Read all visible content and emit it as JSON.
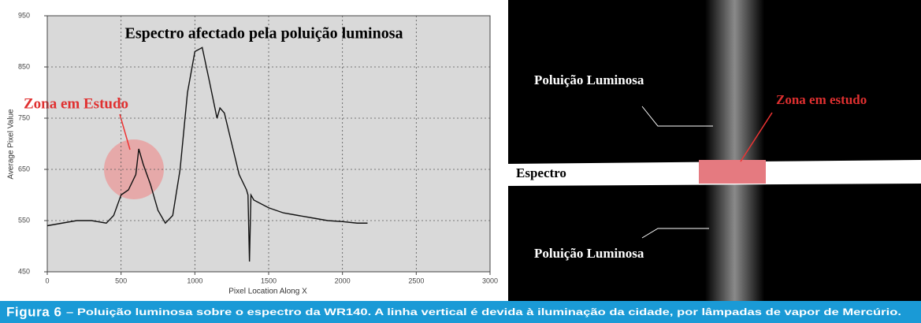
{
  "chart_data": {
    "type": "line",
    "title": "Espectro afectado pela poluição luminosa",
    "x_label": "Pixel Location Along X",
    "y_label": "Average Pixel Value",
    "annotation": "Zona em Estudo",
    "x": [
      0,
      100,
      200,
      300,
      400,
      450,
      500,
      550,
      600,
      620,
      650,
      700,
      750,
      800,
      850,
      900,
      950,
      1000,
      1050,
      1100,
      1150,
      1170,
      1200,
      1250,
      1300,
      1350,
      1360,
      1370,
      1380,
      1400,
      1500,
      1600,
      1700,
      1800,
      1900,
      2000,
      2100,
      2170
    ],
    "values": [
      540,
      545,
      550,
      550,
      545,
      560,
      600,
      610,
      640,
      690,
      660,
      620,
      570,
      545,
      560,
      650,
      800,
      880,
      888,
      820,
      750,
      770,
      760,
      700,
      640,
      610,
      600,
      470,
      600,
      590,
      575,
      565,
      560,
      555,
      550,
      548,
      545,
      545
    ],
    "color": "#111111",
    "xlim": [
      0,
      3000
    ],
    "xticks": [
      0,
      500,
      1000,
      1500,
      2000,
      2500,
      3000
    ],
    "ylim": [
      450,
      950
    ],
    "yticks": [
      450,
      550,
      650,
      750,
      850,
      950
    ],
    "grid": true
  },
  "image": {
    "labels": [
      "Poluição Luminosa",
      "Zona em estudo",
      "Espectro",
      "Poluição Luminosa"
    ]
  },
  "caption": {
    "label": "Figura 6",
    "text": "– Poluição luminosa sobre o espectro da WR140. A linha vertical é devida à iluminação da cidade, por lâmpadas de vapor de Mercúrio."
  }
}
